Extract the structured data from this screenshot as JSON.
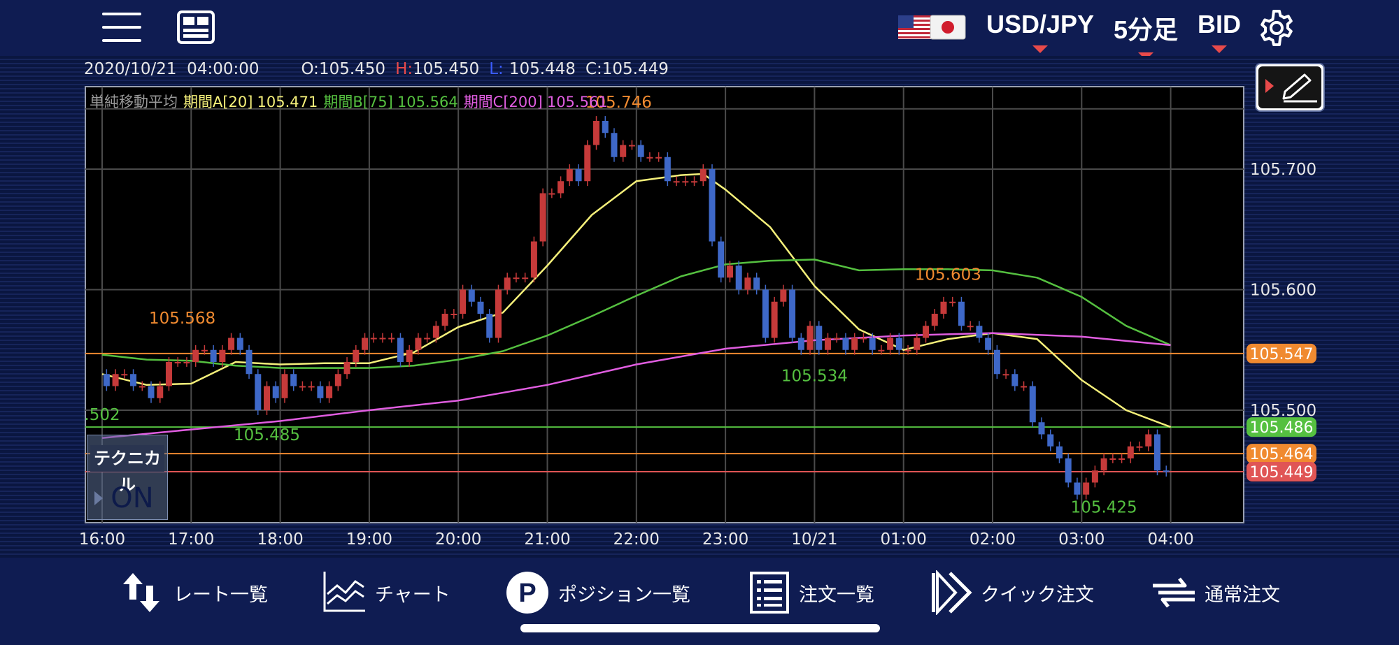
{
  "header": {
    "menu_icon": "hamburger-menu-icon",
    "layout_icon": "layout-grid-icon",
    "currency_pair": "USD/JPY",
    "timeframe": "5分足",
    "price_type": "BID",
    "settings_icon": "gear-icon",
    "accent_color": "#e84a4a"
  },
  "ohlc_bar": {
    "datetime": "2020/10/21  04:00:00",
    "open_label": "O:",
    "open": "105.450",
    "high_label": "H:",
    "high": "105.450",
    "low_label": "L:",
    "low": "105.448",
    "close_label": "C:",
    "close": "105.449"
  },
  "indicator_legend": {
    "name": "単純移動平均",
    "a_label": "期間A[20]",
    "a_value": "105.471",
    "b_label": "期間B[75]",
    "b_value": "105.564",
    "c_label": "期間C[200]",
    "c_value": "105.561"
  },
  "technical_panel": {
    "label": "テクニカル",
    "state": "ON"
  },
  "chart_data": {
    "type": "candlestick",
    "instrument": "USD/JPY",
    "interval": "5m",
    "ylim": [
      105.405,
      105.768
    ],
    "y_ticks": [
      "105.700",
      "105.600",
      "105.500"
    ],
    "x_ticks": [
      "16:00",
      "17:00",
      "18:00",
      "19:00",
      "20:00",
      "21:00",
      "22:00",
      "23:00",
      "10/21",
      "01:00",
      "02:00",
      "03:00",
      "04:00"
    ],
    "horizontal_lines": [
      {
        "value": "105.547",
        "color": "#f08a30"
      },
      {
        "value": "105.486",
        "color": "#55c040"
      },
      {
        "value": "105.464",
        "color": "#f08a30"
      },
      {
        "value": "105.449",
        "color": "#e05555"
      }
    ],
    "annotations": [
      {
        "text": "105.568",
        "x": 16.9,
        "y": 105.572,
        "color": "#f08a30"
      },
      {
        "text": "105.746",
        "x": 21.8,
        "y": 105.751,
        "color": "#f08a30"
      },
      {
        "text": "105.603",
        "x": 1.5,
        "y": 105.608,
        "color": "#f08a30"
      },
      {
        "text": ".502",
        "x": 16.0,
        "y": 105.492,
        "color": "#55c040"
      },
      {
        "text": "105.485",
        "x": 17.85,
        "y": 105.475,
        "color": "#55c040"
      },
      {
        "text": "105.534",
        "x": 0.0,
        "y": 105.524,
        "color": "#55c040"
      },
      {
        "text": "105.425",
        "x": 3.25,
        "y": 105.415,
        "color": "#55c040"
      }
    ],
    "ma_series": [
      {
        "name": "期間A[20]",
        "color": "#f5f07a",
        "x": [
          16.0,
          16.5,
          17.0,
          17.5,
          18.0,
          18.5,
          19.0,
          19.5,
          20.0,
          20.5,
          21.0,
          21.5,
          22.0,
          22.5,
          22.75,
          23.0,
          23.5,
          24.0,
          24.5,
          25.0,
          25.5,
          26.0,
          26.5,
          27.0,
          27.5,
          28.0
        ],
        "y": [
          105.53,
          105.521,
          105.522,
          105.54,
          105.538,
          105.539,
          105.539,
          105.548,
          105.569,
          105.581,
          105.62,
          105.662,
          105.69,
          105.695,
          105.696,
          105.683,
          105.652,
          105.603,
          105.567,
          105.55,
          105.559,
          105.564,
          105.559,
          105.525,
          105.5,
          105.486
        ]
      },
      {
        "name": "期間B[75]",
        "color": "#55c040",
        "x": [
          16.0,
          16.5,
          17.0,
          17.5,
          18.0,
          18.5,
          19.0,
          19.5,
          20.0,
          20.5,
          21.0,
          21.5,
          22.0,
          22.5,
          23.0,
          23.5,
          24.0,
          24.5,
          25.0,
          25.5,
          26.0,
          26.5,
          27.0,
          27.5,
          28.0
        ],
        "y": [
          105.546,
          105.542,
          105.541,
          105.537,
          105.535,
          105.535,
          105.535,
          105.537,
          105.542,
          105.549,
          105.562,
          105.578,
          105.595,
          105.611,
          105.621,
          105.624,
          105.625,
          105.616,
          105.617,
          105.617,
          105.616,
          105.61,
          105.594,
          105.57,
          105.554
        ]
      },
      {
        "name": "期間C[200]",
        "color": "#e05de0",
        "x": [
          16.0,
          17.0,
          18.0,
          19.0,
          20.0,
          21.0,
          22.0,
          23.0,
          24.0,
          25.0,
          26.0,
          27.0,
          28.0
        ],
        "y": [
          105.477,
          105.484,
          105.491,
          105.5,
          105.508,
          105.521,
          105.538,
          105.551,
          105.558,
          105.562,
          105.564,
          105.561,
          105.554
        ]
      }
    ],
    "candles": {
      "x": [
        16.05,
        16.15,
        16.25,
        16.35,
        16.45,
        16.55,
        16.65,
        16.75,
        16.85,
        16.95,
        17.05,
        17.15,
        17.25,
        17.35,
        17.45,
        17.55,
        17.65,
        17.75,
        17.85,
        17.95,
        18.05,
        18.15,
        18.25,
        18.35,
        18.45,
        18.55,
        18.65,
        18.75,
        18.85,
        18.95,
        19.05,
        19.15,
        19.25,
        19.35,
        19.45,
        19.55,
        19.65,
        19.75,
        19.85,
        19.95,
        20.05,
        20.15,
        20.25,
        20.35,
        20.45,
        20.55,
        20.65,
        20.75,
        20.85,
        20.95,
        21.05,
        21.15,
        21.25,
        21.35,
        21.45,
        21.55,
        21.65,
        21.75,
        21.85,
        21.95,
        22.05,
        22.15,
        22.25,
        22.35,
        22.45,
        22.55,
        22.65,
        22.75,
        22.85,
        22.95,
        23.05,
        23.15,
        23.25,
        23.35,
        23.45,
        23.55,
        23.65,
        23.75,
        23.85,
        23.95,
        24.05,
        24.15,
        24.25,
        24.35,
        24.45,
        24.55,
        24.65,
        24.75,
        24.85,
        24.95,
        25.05,
        25.15,
        25.25,
        25.35,
        25.45,
        25.55,
        25.65,
        25.75,
        25.85,
        25.95,
        26.05,
        26.15,
        26.25,
        26.35,
        26.45,
        26.55,
        26.65,
        26.75,
        26.85,
        26.95,
        27.05,
        27.15,
        27.25,
        27.35,
        27.45,
        27.55,
        27.65,
        27.75,
        27.85,
        27.95
      ],
      "open": [
        105.53,
        105.52,
        105.53,
        105.53,
        105.52,
        105.52,
        105.51,
        105.52,
        105.54,
        105.54,
        105.54,
        105.55,
        105.55,
        105.54,
        105.55,
        105.56,
        105.55,
        105.53,
        105.5,
        105.52,
        105.51,
        105.53,
        105.52,
        105.52,
        105.52,
        105.51,
        105.52,
        105.53,
        105.54,
        105.55,
        105.56,
        105.56,
        105.56,
        105.56,
        105.54,
        105.55,
        105.56,
        105.56,
        105.57,
        105.58,
        105.58,
        105.6,
        105.59,
        105.58,
        105.56,
        105.6,
        105.61,
        105.61,
        105.61,
        105.64,
        105.68,
        105.68,
        105.69,
        105.7,
        105.69,
        105.72,
        105.74,
        105.73,
        105.71,
        105.72,
        105.72,
        105.71,
        105.71,
        105.71,
        105.69,
        105.69,
        105.69,
        105.69,
        105.7,
        105.64,
        105.61,
        105.62,
        105.6,
        105.61,
        105.6,
        105.56,
        105.59,
        105.6,
        105.56,
        105.55,
        105.57,
        105.55,
        105.56,
        105.56,
        105.55,
        105.56,
        105.56,
        105.55,
        105.55,
        105.56,
        105.55,
        105.55,
        105.56,
        105.57,
        105.58,
        105.59,
        105.59,
        105.57,
        105.57,
        105.56,
        105.55,
        105.53,
        105.53,
        105.52,
        105.52,
        105.49,
        105.48,
        105.47,
        105.46,
        105.44,
        105.43,
        105.44,
        105.45,
        105.46,
        105.46,
        105.46,
        105.47,
        105.47,
        105.48,
        105.45
      ],
      "close": [
        105.52,
        105.53,
        105.53,
        105.52,
        105.52,
        105.51,
        105.52,
        105.54,
        105.54,
        105.54,
        105.55,
        105.55,
        105.54,
        105.55,
        105.56,
        105.55,
        105.53,
        105.5,
        105.52,
        105.51,
        105.53,
        105.52,
        105.52,
        105.52,
        105.51,
        105.52,
        105.53,
        105.54,
        105.55,
        105.56,
        105.56,
        105.56,
        105.56,
        105.54,
        105.55,
        105.56,
        105.56,
        105.57,
        105.58,
        105.58,
        105.6,
        105.59,
        105.58,
        105.56,
        105.6,
        105.61,
        105.61,
        105.61,
        105.64,
        105.68,
        105.68,
        105.69,
        105.7,
        105.69,
        105.72,
        105.74,
        105.73,
        105.71,
        105.72,
        105.72,
        105.71,
        105.71,
        105.71,
        105.69,
        105.69,
        105.69,
        105.69,
        105.7,
        105.64,
        105.61,
        105.62,
        105.6,
        105.61,
        105.6,
        105.56,
        105.59,
        105.6,
        105.56,
        105.55,
        105.57,
        105.55,
        105.56,
        105.56,
        105.55,
        105.56,
        105.56,
        105.55,
        105.55,
        105.56,
        105.55,
        105.55,
        105.56,
        105.57,
        105.58,
        105.59,
        105.59,
        105.57,
        105.57,
        105.56,
        105.55,
        105.53,
        105.53,
        105.52,
        105.52,
        105.49,
        105.48,
        105.47,
        105.46,
        105.44,
        105.43,
        105.44,
        105.45,
        105.46,
        105.46,
        105.46,
        105.47,
        105.47,
        105.48,
        105.45,
        105.449
      ],
      "bull_color": "#c63a3a",
      "bear_color": "#3e68c8"
    }
  },
  "bottom_nav": {
    "items": [
      {
        "label": "レート一覧",
        "icon": "rate-list-arrows-icon"
      },
      {
        "label": "チャート",
        "icon": "chart-icon"
      },
      {
        "label": "ポジション一覧",
        "icon": "position-p-icon"
      },
      {
        "label": "注文一覧",
        "icon": "order-list-icon"
      },
      {
        "label": "クイック注文",
        "icon": "quick-order-icon"
      },
      {
        "label": "通常注文",
        "icon": "normal-order-icon"
      }
    ]
  }
}
